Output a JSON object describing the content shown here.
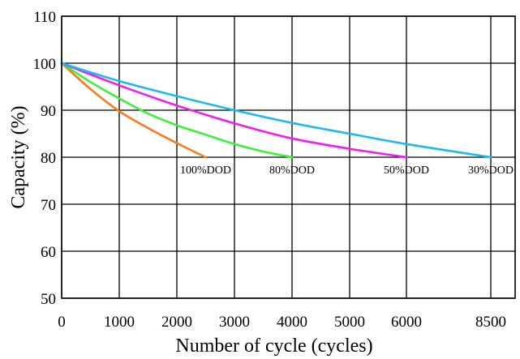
{
  "chart_data": {
    "type": "line",
    "title": "",
    "xlabel": "Number of cycle (cycles)",
    "ylabel": "Capacity (%)",
    "x_ticks": [
      0,
      1000,
      2000,
      3000,
      4000,
      5000,
      6000,
      8500
    ],
    "x_tick_labels": [
      "0",
      "1000",
      "2000",
      "3000",
      "4000",
      "5000",
      "6000",
      "8500"
    ],
    "y_ticks": [
      50,
      60,
      70,
      80,
      90,
      100,
      110
    ],
    "y_tick_labels": [
      "50",
      "60",
      "70",
      "80",
      "90",
      "100",
      "110"
    ],
    "ylim": [
      50,
      110
    ],
    "grid": true,
    "legend": "none",
    "series": [
      {
        "name": "100%DOD",
        "color": "#f57c1f",
        "points": [
          [
            0,
            100
          ],
          [
            500,
            94.5
          ],
          [
            1000,
            89.8
          ],
          [
            1500,
            86.2
          ],
          [
            2000,
            83.0
          ],
          [
            2500,
            80.0
          ]
        ]
      },
      {
        "name": "80%DOD",
        "color": "#3df03d",
        "points": [
          [
            0,
            100
          ],
          [
            500,
            96.0
          ],
          [
            1000,
            92.5
          ],
          [
            1500,
            89.3
          ],
          [
            2000,
            86.8
          ],
          [
            2500,
            84.8
          ],
          [
            3000,
            82.8
          ],
          [
            3500,
            81.2
          ],
          [
            4000,
            80.0
          ]
        ]
      },
      {
        "name": "50%DOD",
        "color": "#f01cf0",
        "points": [
          [
            0,
            100
          ],
          [
            1000,
            95.3
          ],
          [
            2000,
            91.0
          ],
          [
            3000,
            87.2
          ],
          [
            4000,
            84.0
          ],
          [
            5000,
            81.8
          ],
          [
            6000,
            80.0
          ]
        ]
      },
      {
        "name": "30%DOD",
        "color": "#1eb8f0",
        "points": [
          [
            0,
            100
          ],
          [
            1000,
            96.2
          ],
          [
            2000,
            93.0
          ],
          [
            3000,
            90.0
          ],
          [
            4000,
            87.3
          ],
          [
            5000,
            85.0
          ],
          [
            6000,
            82.8
          ],
          [
            8500,
            80.0
          ]
        ]
      }
    ]
  }
}
